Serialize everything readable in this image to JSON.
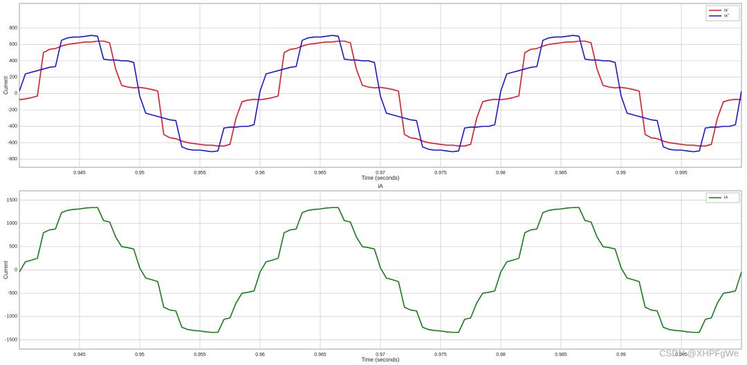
{
  "chart_data": [
    {
      "type": "line",
      "ylabel": "Current",
      "xlabel": "Time (seconds)",
      "grid": true,
      "legend": "upper right",
      "xlim": [
        0.94,
        1.0
      ],
      "ylim": [
        -900,
        1100
      ],
      "xticks": [
        0.945,
        0.95,
        0.955,
        0.96,
        0.965,
        0.97,
        0.975,
        0.98,
        0.985,
        0.99,
        0.995
      ],
      "yticks": [
        -800,
        -600,
        -400,
        -200,
        0,
        200,
        400,
        600,
        800
      ],
      "x": [
        0.94,
        0.9405,
        0.941,
        0.9415,
        0.942,
        0.9425,
        0.943,
        0.9435,
        0.944,
        0.9445,
        0.945,
        0.9455,
        0.946,
        0.9465,
        0.947,
        0.9475,
        0.948,
        0.9485,
        0.949,
        0.9495,
        0.95,
        0.9505,
        0.951,
        0.9515,
        0.952,
        0.9525,
        0.953,
        0.9535,
        0.954,
        0.9545,
        0.955,
        0.9555,
        0.956,
        0.9565,
        0.957,
        0.9575,
        0.958,
        0.9585,
        0.959,
        0.9595,
        0.96,
        0.9605,
        0.961,
        0.9615,
        0.962,
        0.9625,
        0.963,
        0.9635,
        0.964,
        0.9645,
        0.965,
        0.9655,
        0.966,
        0.9665,
        0.967,
        0.9675,
        0.968,
        0.9685,
        0.969,
        0.9695,
        0.97,
        0.9705,
        0.971,
        0.9715,
        0.972,
        0.9725,
        0.973,
        0.9735,
        0.974,
        0.9745,
        0.975,
        0.9755,
        0.976,
        0.9765,
        0.977,
        0.9775,
        0.978,
        0.9785,
        0.979,
        0.9795,
        0.98,
        0.9805,
        0.981,
        0.9815,
        0.982,
        0.9825,
        0.983,
        0.9835,
        0.984,
        0.9845,
        0.985,
        0.9855,
        0.986,
        0.9865,
        0.987,
        0.9875,
        0.988,
        0.9885,
        0.989,
        0.9895,
        0.99,
        0.9905,
        0.991,
        0.9915,
        0.992,
        0.9925,
        0.993,
        0.9935,
        0.994,
        0.9945,
        0.995,
        0.9955,
        0.996,
        0.9965,
        0.997,
        0.9975,
        0.998,
        0.9985,
        0.999,
        0.9995,
        1.0
      ],
      "series": [
        {
          "name": "ia'",
          "color": "#e8141e",
          "values": [
            -75,
            -65,
            -50,
            -30,
            500,
            540,
            550,
            580,
            600,
            610,
            620,
            630,
            630,
            640,
            640,
            620,
            300,
            100,
            80,
            70,
            75,
            65,
            50,
            30,
            -500,
            -540,
            -550,
            -580,
            -600,
            -610,
            -620,
            -630,
            -630,
            -640,
            -640,
            -620,
            -300,
            -100,
            -80,
            -70,
            -75,
            -65,
            -50,
            -30,
            500,
            540,
            550,
            580,
            600,
            610,
            620,
            630,
            630,
            640,
            640,
            620,
            300,
            100,
            80,
            70,
            75,
            65,
            50,
            30,
            -500,
            -540,
            -550,
            -580,
            -600,
            -610,
            -620,
            -630,
            -630,
            -640,
            -640,
            -620,
            -300,
            -100,
            -80,
            -70,
            -75,
            -65,
            -50,
            -30,
            500,
            540,
            550,
            580,
            600,
            610,
            620,
            630,
            630,
            640,
            640,
            620,
            300,
            100,
            80,
            70,
            75,
            65,
            50,
            30,
            -500,
            -540,
            -550,
            -580,
            -600,
            -610,
            -620,
            -630,
            -630,
            -640,
            -640,
            -620,
            -300,
            -100,
            -80,
            -70,
            -75
          ]
        },
        {
          "name": "ia''",
          "color": "#1414e6",
          "values": [
            30,
            240,
            260,
            280,
            300,
            320,
            330,
            650,
            680,
            690,
            690,
            700,
            710,
            700,
            420,
            410,
            410,
            400,
            400,
            380,
            -30,
            -240,
            -260,
            -280,
            -300,
            -320,
            -330,
            -650,
            -680,
            -690,
            -690,
            -700,
            -710,
            -700,
            -420,
            -410,
            -410,
            -400,
            -400,
            -380,
            30,
            240,
            260,
            280,
            300,
            320,
            330,
            650,
            680,
            690,
            690,
            700,
            710,
            700,
            420,
            410,
            410,
            400,
            400,
            380,
            -30,
            -240,
            -260,
            -280,
            -300,
            -320,
            -330,
            -650,
            -680,
            -690,
            -690,
            -700,
            -710,
            -700,
            -420,
            -410,
            -410,
            -400,
            -400,
            -380,
            30,
            240,
            260,
            280,
            300,
            320,
            330,
            650,
            680,
            690,
            690,
            700,
            710,
            700,
            420,
            410,
            410,
            400,
            400,
            380,
            -30,
            -240,
            -260,
            -280,
            -300,
            -320,
            -330,
            -650,
            -680,
            -690,
            -690,
            -700,
            -710,
            -700,
            -420,
            -410,
            -410,
            -400,
            -400,
            -380,
            30
          ]
        }
      ]
    },
    {
      "type": "line",
      "title": "iA",
      "ylabel": "Current",
      "xlabel": "Time (seconds)",
      "grid": true,
      "legend": "upper right",
      "xlim": [
        0.94,
        1.0
      ],
      "ylim": [
        -1700,
        1700
      ],
      "xticks": [
        0.945,
        0.95,
        0.955,
        0.96,
        0.965,
        0.97,
        0.975,
        0.98,
        0.985,
        0.99,
        0.995
      ],
      "yticks": [
        -1500,
        -1000,
        -500,
        0,
        500,
        1000,
        1500
      ],
      "x": [
        0.94,
        0.9405,
        0.941,
        0.9415,
        0.942,
        0.9425,
        0.943,
        0.9435,
        0.944,
        0.9445,
        0.945,
        0.9455,
        0.946,
        0.9465,
        0.947,
        0.9475,
        0.948,
        0.9485,
        0.949,
        0.9495,
        0.95,
        0.9505,
        0.951,
        0.9515,
        0.952,
        0.9525,
        0.953,
        0.9535,
        0.954,
        0.9545,
        0.955,
        0.9555,
        0.956,
        0.9565,
        0.957,
        0.9575,
        0.958,
        0.9585,
        0.959,
        0.9595,
        0.96,
        0.9605,
        0.961,
        0.9615,
        0.962,
        0.9625,
        0.963,
        0.9635,
        0.964,
        0.9645,
        0.965,
        0.9655,
        0.966,
        0.9665,
        0.967,
        0.9675,
        0.968,
        0.9685,
        0.969,
        0.9695,
        0.97,
        0.9705,
        0.971,
        0.9715,
        0.972,
        0.9725,
        0.973,
        0.9735,
        0.974,
        0.9745,
        0.975,
        0.9755,
        0.976,
        0.9765,
        0.977,
        0.9775,
        0.978,
        0.9785,
        0.979,
        0.9795,
        0.98,
        0.9805,
        0.981,
        0.9815,
        0.982,
        0.9825,
        0.983,
        0.9835,
        0.984,
        0.9845,
        0.985,
        0.9855,
        0.986,
        0.9865,
        0.987,
        0.9875,
        0.988,
        0.9885,
        0.989,
        0.9895,
        0.99,
        0.9905,
        0.991,
        0.9915,
        0.992,
        0.9925,
        0.993,
        0.9935,
        0.994,
        0.9945,
        0.995,
        0.9955,
        0.996,
        0.9965,
        0.997,
        0.9975,
        0.998,
        0.9985,
        0.999,
        0.9995,
        1.0
      ],
      "series": [
        {
          "name": "iA",
          "color": "#108010",
          "values": [
            -45,
            175,
            210,
            250,
            800,
            860,
            880,
            1230,
            1280,
            1300,
            1310,
            1330,
            1340,
            1340,
            1060,
            1030,
            710,
            500,
            480,
            450,
            45,
            -175,
            -210,
            -250,
            -800,
            -860,
            -880,
            -1230,
            -1280,
            -1300,
            -1310,
            -1330,
            -1340,
            -1340,
            -1060,
            -1030,
            -710,
            -500,
            -480,
            -450,
            -45,
            175,
            210,
            250,
            800,
            860,
            880,
            1230,
            1280,
            1300,
            1310,
            1330,
            1340,
            1340,
            1060,
            1030,
            710,
            500,
            480,
            450,
            45,
            -175,
            -210,
            -250,
            -800,
            -860,
            -880,
            -1230,
            -1280,
            -1300,
            -1310,
            -1330,
            -1340,
            -1340,
            -1060,
            -1030,
            -710,
            -500,
            -480,
            -450,
            -45,
            175,
            210,
            250,
            800,
            860,
            880,
            1230,
            1280,
            1300,
            1310,
            1330,
            1340,
            1340,
            1060,
            1030,
            710,
            500,
            480,
            450,
            45,
            -175,
            -210,
            -250,
            -800,
            -860,
            -880,
            -1230,
            -1280,
            -1300,
            -1310,
            -1330,
            -1340,
            -1340,
            -1060,
            -1030,
            -710,
            -500,
            -480,
            -450,
            -45
          ]
        }
      ]
    }
  ],
  "watermark": "CSDN @XHPFgWe"
}
